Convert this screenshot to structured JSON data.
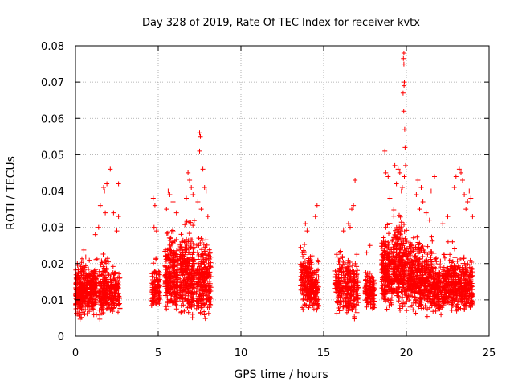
{
  "chart_data": {
    "type": "scatter",
    "title": "Day 328 of 2019, Rate Of TEC Index for receiver kvtx",
    "xlabel": "GPS time / hours",
    "ylabel": "ROTI / TECUs",
    "xlim": [
      0,
      25
    ],
    "ylim": [
      0,
      0.08
    ],
    "xticks": [
      "0",
      "5",
      "10",
      "15",
      "20",
      "25"
    ],
    "yticks": [
      "0",
      "0.01",
      "0.02",
      "0.03",
      "0.04",
      "0.05",
      "0.06",
      "0.07",
      "0.08"
    ],
    "grid": true,
    "marker": "plus",
    "color": "#ff0000",
    "series": [
      {
        "name": "ROTI",
        "clusters": [
          {
            "x_range": [
              0.0,
              0.4
            ],
            "y_range": [
              0.004,
              0.022
            ],
            "count": 140
          },
          {
            "x_range": [
              0.3,
              0.8
            ],
            "y_range": [
              0.004,
              0.024
            ],
            "count": 140
          },
          {
            "x_range": [
              0.8,
              1.3
            ],
            "y_range": [
              0.005,
              0.023
            ],
            "count": 150
          },
          {
            "x_range": [
              1.4,
              2.0
            ],
            "y_range": [
              0.004,
              0.024
            ],
            "count": 150
          },
          {
            "x_range": [
              2.0,
              2.7
            ],
            "y_range": [
              0.005,
              0.021
            ],
            "count": 130
          },
          {
            "x_range": [
              4.6,
              5.1
            ],
            "y_range": [
              0.006,
              0.022
            ],
            "count": 110
          },
          {
            "x_range": [
              5.4,
              6.2
            ],
            "y_range": [
              0.005,
              0.032
            ],
            "count": 260
          },
          {
            "x_range": [
              6.3,
              7.2
            ],
            "y_range": [
              0.004,
              0.034
            ],
            "count": 300
          },
          {
            "x_range": [
              7.3,
              8.2
            ],
            "y_range": [
              0.004,
              0.03
            ],
            "count": 260
          },
          {
            "x_range": [
              13.6,
              14.3
            ],
            "y_range": [
              0.006,
              0.026
            ],
            "count": 170
          },
          {
            "x_range": [
              14.2,
              14.7
            ],
            "y_range": [
              0.005,
              0.022
            ],
            "count": 110
          },
          {
            "x_range": [
              15.7,
              16.5
            ],
            "y_range": [
              0.005,
              0.026
            ],
            "count": 160
          },
          {
            "x_range": [
              16.4,
              17.1
            ],
            "y_range": [
              0.004,
              0.024
            ],
            "count": 150
          },
          {
            "x_range": [
              17.5,
              18.1
            ],
            "y_range": [
              0.006,
              0.02
            ],
            "count": 120
          },
          {
            "x_range": [
              18.5,
              19.2
            ],
            "y_range": [
              0.006,
              0.032
            ],
            "count": 230
          },
          {
            "x_range": [
              19.2,
              20.0
            ],
            "y_range": [
              0.006,
              0.036
            ],
            "count": 260
          },
          {
            "x_range": [
              20.0,
              20.8
            ],
            "y_range": [
              0.006,
              0.03
            ],
            "count": 240
          },
          {
            "x_range": [
              20.8,
              21.6
            ],
            "y_range": [
              0.005,
              0.028
            ],
            "count": 220
          },
          {
            "x_range": [
              21.6,
              22.4
            ],
            "y_range": [
              0.005,
              0.024
            ],
            "count": 200
          },
          {
            "x_range": [
              22.4,
              23.2
            ],
            "y_range": [
              0.005,
              0.026
            ],
            "count": 220
          },
          {
            "x_range": [
              23.2,
              24.0
            ],
            "y_range": [
              0.006,
              0.024
            ],
            "count": 200
          }
        ],
        "outliers": [
          [
            1.2,
            0.028
          ],
          [
            1.4,
            0.03
          ],
          [
            1.5,
            0.036
          ],
          [
            1.7,
            0.041
          ],
          [
            1.75,
            0.04
          ],
          [
            1.9,
            0.042
          ],
          [
            1.8,
            0.034
          ],
          [
            2.3,
            0.034
          ],
          [
            2.6,
            0.033
          ],
          [
            2.1,
            0.046
          ],
          [
            2.6,
            0.042
          ],
          [
            2.5,
            0.029
          ],
          [
            4.7,
            0.038
          ],
          [
            4.8,
            0.036
          ],
          [
            4.75,
            0.03
          ],
          [
            4.9,
            0.029
          ],
          [
            5.6,
            0.04
          ],
          [
            5.7,
            0.039
          ],
          [
            5.9,
            0.037
          ],
          [
            6.1,
            0.034
          ],
          [
            5.5,
            0.035
          ],
          [
            6.8,
            0.045
          ],
          [
            6.9,
            0.043
          ],
          [
            7.0,
            0.041
          ],
          [
            7.1,
            0.039
          ],
          [
            6.7,
            0.038
          ],
          [
            7.5,
            0.056
          ],
          [
            7.55,
            0.055
          ],
          [
            7.5,
            0.051
          ],
          [
            7.7,
            0.046
          ],
          [
            7.4,
            0.037
          ],
          [
            7.8,
            0.041
          ],
          [
            7.9,
            0.04
          ],
          [
            7.6,
            0.035
          ],
          [
            8.0,
            0.033
          ],
          [
            13.9,
            0.031
          ],
          [
            14.0,
            0.029
          ],
          [
            14.6,
            0.036
          ],
          [
            14.5,
            0.033
          ],
          [
            16.2,
            0.029
          ],
          [
            16.5,
            0.031
          ],
          [
            16.7,
            0.035
          ],
          [
            16.8,
            0.036
          ],
          [
            16.9,
            0.043
          ],
          [
            16.6,
            0.03
          ],
          [
            17.8,
            0.025
          ],
          [
            17.6,
            0.023
          ],
          [
            18.7,
            0.051
          ],
          [
            18.75,
            0.045
          ],
          [
            18.9,
            0.044
          ],
          [
            19.0,
            0.038
          ],
          [
            19.3,
            0.047
          ],
          [
            19.5,
            0.046
          ],
          [
            19.4,
            0.042
          ],
          [
            19.6,
            0.045
          ],
          [
            19.7,
            0.04
          ],
          [
            19.85,
            0.078
          ],
          [
            19.82,
            0.0765
          ],
          [
            19.85,
            0.075
          ],
          [
            19.88,
            0.07
          ],
          [
            19.86,
            0.069
          ],
          [
            19.8,
            0.067
          ],
          [
            19.84,
            0.062
          ],
          [
            19.9,
            0.057
          ],
          [
            19.92,
            0.052
          ],
          [
            19.95,
            0.047
          ],
          [
            19.88,
            0.044
          ],
          [
            19.75,
            0.041
          ],
          [
            20.7,
            0.043
          ],
          [
            20.9,
            0.041
          ],
          [
            21.0,
            0.037
          ],
          [
            20.6,
            0.039
          ],
          [
            20.8,
            0.035
          ],
          [
            21.2,
            0.034
          ],
          [
            21.7,
            0.044
          ],
          [
            21.5,
            0.04
          ],
          [
            21.4,
            0.032
          ],
          [
            22.9,
            0.041
          ],
          [
            23.0,
            0.044
          ],
          [
            23.2,
            0.046
          ],
          [
            23.3,
            0.045
          ],
          [
            23.4,
            0.043
          ],
          [
            23.5,
            0.039
          ],
          [
            23.7,
            0.037
          ],
          [
            23.8,
            0.04
          ],
          [
            23.9,
            0.038
          ],
          [
            23.6,
            0.035
          ],
          [
            24.0,
            0.033
          ],
          [
            22.5,
            0.033
          ],
          [
            22.2,
            0.031
          ]
        ]
      }
    ]
  }
}
